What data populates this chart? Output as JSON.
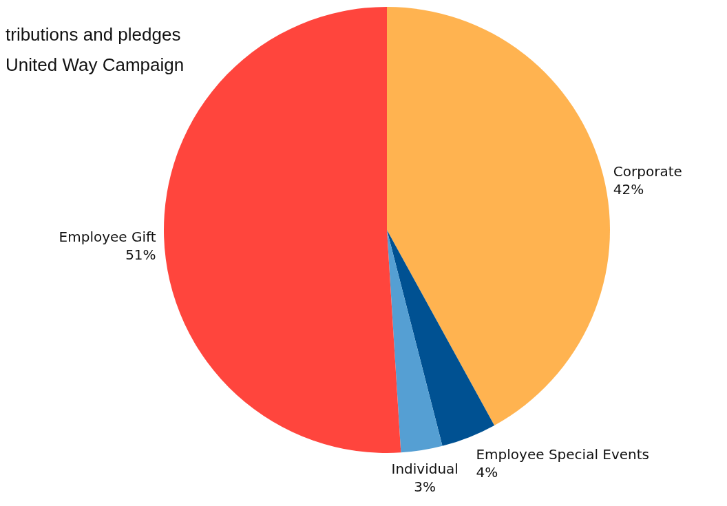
{
  "chart_data": {
    "type": "pie",
    "title": "tributions and pledges\nUnited Way Campaign",
    "categories": [
      "Corporate",
      "Employee Special Events",
      "Individual",
      "Employee Gift"
    ],
    "values": [
      42,
      4,
      3,
      51
    ],
    "colors": [
      "#ffb350",
      "#005192",
      "#559fd3",
      "#ff453d"
    ],
    "value_labels": [
      "42%",
      "4%",
      "3%",
      "51%"
    ]
  }
}
